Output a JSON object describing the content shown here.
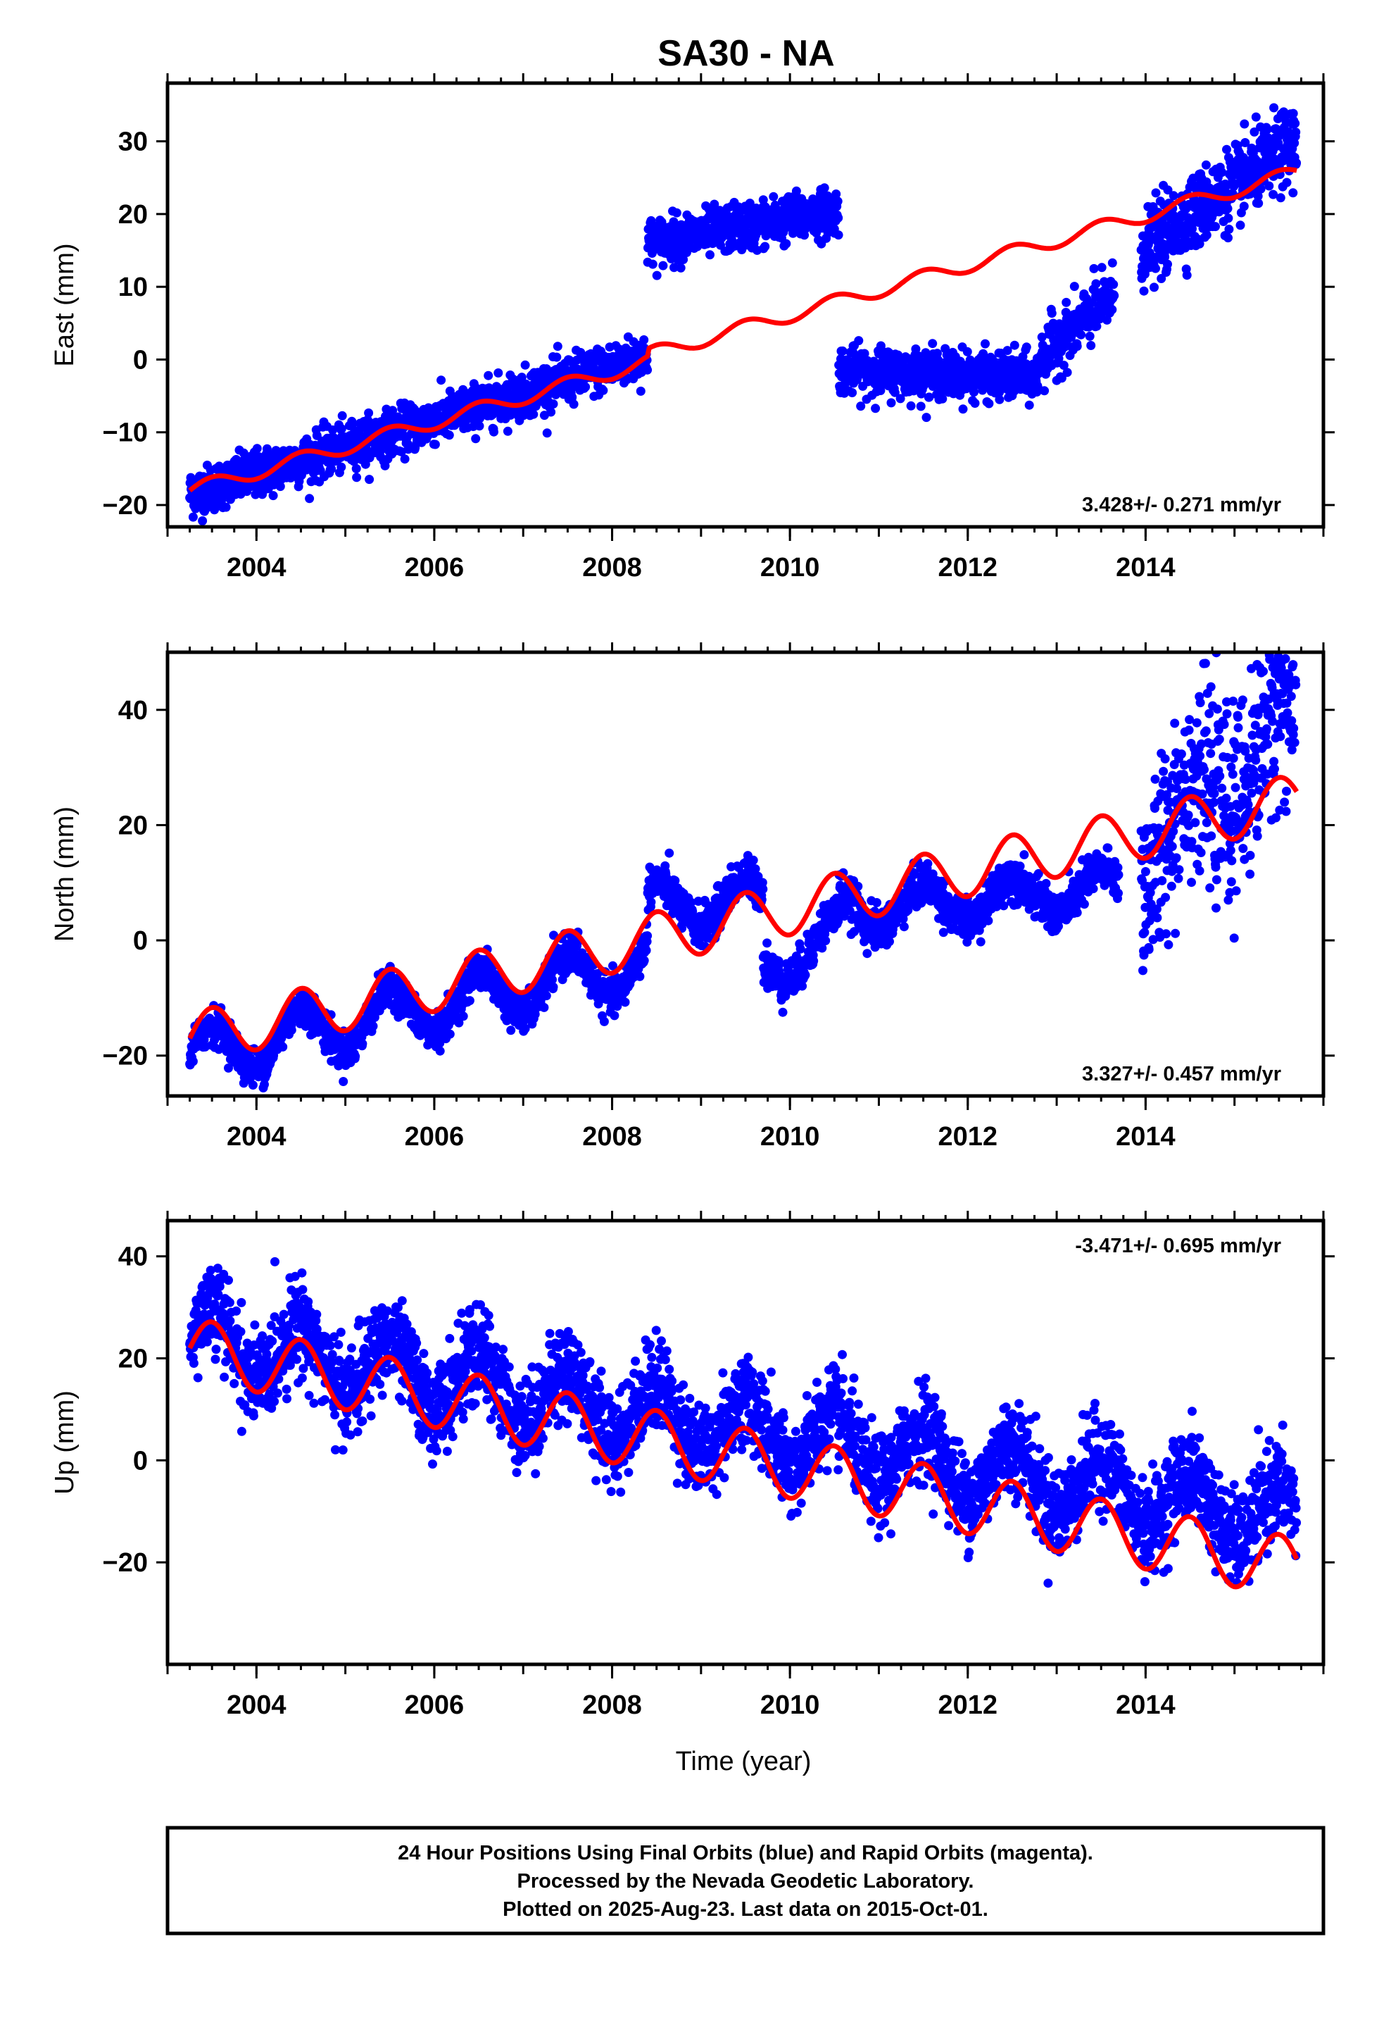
{
  "figure": {
    "title": "SA30 - NA",
    "footer": [
      "24 Hour Positions Using Final Orbits (blue) and Rapid Orbits (magenta).",
      "Processed by the Nevada Geodetic Laboratory.",
      "Plotted on 2025-Aug-23. Last data on 2015-Oct-01."
    ],
    "colors": {
      "data": "#0000ff",
      "model": "#ff0000",
      "axis": "#000000"
    }
  },
  "chart_data": [
    {
      "type": "scatter",
      "ylabel": "East (mm)",
      "xlabel": "",
      "xlim": [
        2003.0,
        2016.0
      ],
      "ylim": [
        -23,
        38
      ],
      "xticks": [
        2004,
        2006,
        2008,
        2010,
        2012,
        2014
      ],
      "xtick_labels": [
        "2004",
        "2006",
        "2008",
        "2010",
        "2012",
        "2014"
      ],
      "yticks": [
        -20,
        -10,
        0,
        10,
        20,
        30
      ],
      "ytick_labels": [
        "−20",
        "−10",
        "0",
        "10",
        "20",
        "30"
      ],
      "rate_label": "3.428+/- 0.271 mm/yr",
      "rate_position": "bottom-right",
      "observation_segments": [
        {
          "from": 2003.25,
          "to": 2008.4,
          "start": -18.5,
          "end": 0.5,
          "scatter": 1.6
        },
        {
          "from": 2008.4,
          "to": 2010.55,
          "start": 16.0,
          "end": 20.5,
          "scatter": 1.6
        },
        {
          "from": 2010.55,
          "to": 2012.8,
          "start": -1.5,
          "end": -2.5,
          "scatter": 1.6
        },
        {
          "from": 2012.8,
          "to": 2013.65,
          "start": 0.0,
          "end": 9.0,
          "scatter": 2.0
        },
        {
          "from": 2013.95,
          "to": 2015.7,
          "start": 15.0,
          "end": 30.0,
          "scatter": 2.6
        }
      ],
      "model_curve": {
        "from": 2003.25,
        "to": 2015.7,
        "start": -18.0,
        "trend": 3.428,
        "annual_amplitude": 1.0,
        "offsets": [
          {
            "at": 2008.4,
            "step": 1.0
          }
        ]
      }
    },
    {
      "type": "scatter",
      "ylabel": "North (mm)",
      "xlabel": "",
      "xlim": [
        2003.0,
        2016.0
      ],
      "ylim": [
        -27,
        50
      ],
      "xticks": [
        2004,
        2006,
        2008,
        2010,
        2012,
        2014
      ],
      "xtick_labels": [
        "2004",
        "2006",
        "2008",
        "2010",
        "2012",
        "2014"
      ],
      "yticks": [
        -20,
        0,
        20,
        40
      ],
      "ytick_labels": [
        "−20",
        "0",
        "20",
        "40"
      ],
      "rate_label": "3.327+/- 0.457 mm/yr",
      "rate_position": "bottom-right",
      "observation_segments": [
        {
          "from": 2003.25,
          "to": 2008.4,
          "start": -20.0,
          "end": -4.0,
          "scatter": 1.6,
          "annual_amplitude": 4.5
        },
        {
          "from": 2008.4,
          "to": 2009.7,
          "start": 6.0,
          "end": 7.0,
          "scatter": 1.8,
          "annual_amplitude": 4.0
        },
        {
          "from": 2009.7,
          "to": 2010.55,
          "start": -5.0,
          "end": 1.0,
          "scatter": 1.8,
          "annual_amplitude": 4.0
        },
        {
          "from": 2010.55,
          "to": 2013.7,
          "start": 5.0,
          "end": 9.0,
          "scatter": 1.8,
          "annual_amplitude": 3.5
        },
        {
          "from": 2013.95,
          "to": 2015.7,
          "start": 15.0,
          "end": 38.0,
          "scatter": 8.0,
          "annual_amplitude": 6.0
        }
      ],
      "model_curve": {
        "from": 2003.25,
        "to": 2015.7,
        "start": -17.0,
        "trend": 3.327,
        "annual_amplitude": 4.5,
        "offsets": []
      }
    },
    {
      "type": "scatter",
      "ylabel": "Up (mm)",
      "xlabel": "Time (year)",
      "xlim": [
        2003.0,
        2016.0
      ],
      "ylim": [
        -40,
        47
      ],
      "xticks": [
        2004,
        2006,
        2008,
        2010,
        2012,
        2014
      ],
      "xtick_labels": [
        "2004",
        "2006",
        "2008",
        "2010",
        "2012",
        "2014"
      ],
      "yticks": [
        -20,
        0,
        20,
        40
      ],
      "ytick_labels": [
        "−20",
        "0",
        "20",
        "40"
      ],
      "rate_label": "-3.471+/- 0.695 mm/yr",
      "rate_position": "top-right",
      "observation_segments": [
        {
          "from": 2003.25,
          "to": 2015.7,
          "start": 24.0,
          "end": -12.0,
          "scatter": 4.5,
          "annual_amplitude": 6.0
        }
      ],
      "model_curve": {
        "from": 2003.25,
        "to": 2015.7,
        "start": 22.0,
        "trend": -3.471,
        "annual_amplitude": 6.0,
        "offsets": []
      }
    }
  ]
}
